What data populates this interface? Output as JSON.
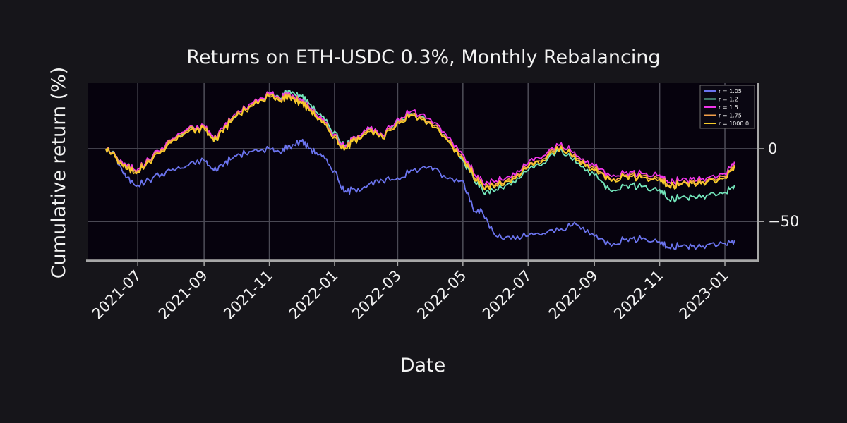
{
  "chart_data": {
    "type": "line",
    "title": "Returns on ETH-USDC 0.3%, Monthly Rebalancing",
    "xlabel": "Date",
    "ylabel": "Cumulative return (%)",
    "xlim": [
      "2021-05-15",
      "2023-02-01"
    ],
    "ylim": [
      -77,
      45
    ],
    "yticks": [
      0,
      -50
    ],
    "ytick_labels": [
      "0",
      "−50"
    ],
    "y_axis_side": "right",
    "xticks": [
      "2021-07-01",
      "2021-09-01",
      "2021-11-01",
      "2022-01-01",
      "2022-03-01",
      "2022-05-01",
      "2022-07-01",
      "2022-09-01",
      "2022-11-01",
      "2023-01-01"
    ],
    "xtick_labels": [
      "2021-07",
      "2021-09",
      "2021-11",
      "2022-01",
      "2022-03",
      "2022-05",
      "2022-07",
      "2022-09",
      "2022-11",
      "2023-01"
    ],
    "grid": true,
    "legend_position": "top-right",
    "series": [
      {
        "name": "r = 1.05",
        "color": "#6b74ee",
        "x": [
          "2021-06-01",
          "2021-06-10",
          "2021-06-20",
          "2021-07-01",
          "2021-07-15",
          "2021-08-01",
          "2021-08-15",
          "2021-09-01",
          "2021-09-10",
          "2021-09-20",
          "2021-10-01",
          "2021-10-15",
          "2021-11-01",
          "2021-11-10",
          "2021-11-20",
          "2021-12-01",
          "2021-12-10",
          "2021-12-20",
          "2022-01-01",
          "2022-01-10",
          "2022-01-20",
          "2022-02-01",
          "2022-02-15",
          "2022-03-01",
          "2022-03-15",
          "2022-04-01",
          "2022-04-15",
          "2022-05-01",
          "2022-05-10",
          "2022-05-20",
          "2022-06-01",
          "2022-06-15",
          "2022-07-01",
          "2022-07-15",
          "2022-08-01",
          "2022-08-15",
          "2022-09-01",
          "2022-09-15",
          "2022-10-01",
          "2022-10-15",
          "2022-11-01",
          "2022-11-10",
          "2022-11-20",
          "2022-12-01",
          "2022-12-15",
          "2023-01-01",
          "2023-01-10"
        ],
        "y": [
          0,
          -5,
          -20,
          -25,
          -20,
          -15,
          -12,
          -8,
          -15,
          -10,
          -5,
          -2,
          0,
          -2,
          2,
          5,
          0,
          -5,
          -15,
          -30,
          -28,
          -25,
          -22,
          -20,
          -15,
          -12,
          -20,
          -22,
          -40,
          -45,
          -60,
          -62,
          -60,
          -58,
          -55,
          -52,
          -60,
          -65,
          -62,
          -62,
          -64,
          -68,
          -67,
          -67,
          -66,
          -65,
          -63
        ]
      },
      {
        "name": "r = 1.2",
        "color": "#73e6bb",
        "x": [
          "2021-06-01",
          "2021-06-10",
          "2021-06-20",
          "2021-07-01",
          "2021-07-15",
          "2021-08-01",
          "2021-08-15",
          "2021-09-01",
          "2021-09-10",
          "2021-09-20",
          "2021-10-01",
          "2021-10-15",
          "2021-11-01",
          "2021-11-10",
          "2021-11-20",
          "2021-12-01",
          "2021-12-10",
          "2021-12-20",
          "2022-01-01",
          "2022-01-10",
          "2022-01-20",
          "2022-02-01",
          "2022-02-15",
          "2022-03-01",
          "2022-03-15",
          "2022-04-01",
          "2022-04-15",
          "2022-05-01",
          "2022-05-10",
          "2022-05-20",
          "2022-06-01",
          "2022-06-15",
          "2022-07-01",
          "2022-07-15",
          "2022-08-01",
          "2022-08-15",
          "2022-09-01",
          "2022-09-15",
          "2022-10-01",
          "2022-10-15",
          "2022-11-01",
          "2022-11-10",
          "2022-11-20",
          "2022-12-01",
          "2022-12-15",
          "2023-01-01",
          "2023-01-10"
        ],
        "y": [
          0,
          -5,
          -12,
          -15,
          -5,
          5,
          12,
          15,
          5,
          15,
          22,
          30,
          38,
          35,
          40,
          36,
          30,
          22,
          12,
          2,
          8,
          14,
          8,
          20,
          24,
          18,
          8,
          -8,
          -18,
          -30,
          -28,
          -25,
          -15,
          -10,
          0,
          -10,
          -18,
          -28,
          -25,
          -26,
          -28,
          -35,
          -34,
          -33,
          -32,
          -30,
          -25
        ]
      },
      {
        "name": "r = 1.5",
        "color": "#f035e9",
        "x": [
          "2021-06-01",
          "2021-06-10",
          "2021-06-20",
          "2021-07-01",
          "2021-07-15",
          "2021-08-01",
          "2021-08-15",
          "2021-09-01",
          "2021-09-10",
          "2021-09-20",
          "2021-10-01",
          "2021-10-15",
          "2021-11-01",
          "2021-11-10",
          "2021-11-20",
          "2021-12-01",
          "2021-12-10",
          "2021-12-20",
          "2022-01-01",
          "2022-01-10",
          "2022-01-20",
          "2022-02-01",
          "2022-02-15",
          "2022-03-01",
          "2022-03-15",
          "2022-04-01",
          "2022-04-15",
          "2022-05-01",
          "2022-05-10",
          "2022-05-20",
          "2022-06-01",
          "2022-06-15",
          "2022-07-01",
          "2022-07-15",
          "2022-08-01",
          "2022-08-15",
          "2022-09-01",
          "2022-09-15",
          "2022-10-01",
          "2022-10-15",
          "2022-11-01",
          "2022-11-10",
          "2022-11-20",
          "2022-12-01",
          "2022-12-15",
          "2023-01-01",
          "2023-01-10"
        ],
        "y": [
          0,
          -5,
          -12,
          -14,
          -5,
          6,
          13,
          16,
          7,
          16,
          24,
          31,
          38,
          35,
          38,
          33,
          28,
          20,
          10,
          1,
          8,
          15,
          9,
          21,
          26,
          20,
          10,
          -4,
          -14,
          -24,
          -22,
          -20,
          -10,
          -5,
          4,
          -5,
          -12,
          -18,
          -16,
          -17,
          -18,
          -23,
          -22,
          -21,
          -20,
          -17,
          -9
        ]
      },
      {
        "name": "r = 1.75",
        "color": "#f3a04a",
        "x": [
          "2021-06-01",
          "2021-06-10",
          "2021-06-20",
          "2021-07-01",
          "2021-07-15",
          "2021-08-01",
          "2021-08-15",
          "2021-09-01",
          "2021-09-10",
          "2021-09-20",
          "2021-10-01",
          "2021-10-15",
          "2021-11-01",
          "2021-11-10",
          "2021-11-20",
          "2021-12-01",
          "2021-12-10",
          "2021-12-20",
          "2022-01-01",
          "2022-01-10",
          "2022-01-20",
          "2022-02-01",
          "2022-02-15",
          "2022-03-01",
          "2022-03-15",
          "2022-04-01",
          "2022-04-15",
          "2022-05-01",
          "2022-05-10",
          "2022-05-20",
          "2022-06-01",
          "2022-06-15",
          "2022-07-01",
          "2022-07-15",
          "2022-08-01",
          "2022-08-15",
          "2022-09-01",
          "2022-09-15",
          "2022-10-01",
          "2022-10-15",
          "2022-11-01",
          "2022-11-10",
          "2022-11-20",
          "2022-12-01",
          "2022-12-15",
          "2023-01-01",
          "2023-01-10"
        ],
        "y": [
          0,
          -5,
          -13,
          -15,
          -6,
          5,
          12,
          15,
          6,
          15,
          23,
          30,
          37,
          34,
          37,
          32,
          27,
          19,
          9,
          0,
          7,
          13,
          8,
          19,
          24,
          18,
          8,
          -6,
          -16,
          -26,
          -24,
          -22,
          -12,
          -7,
          2,
          -7,
          -14,
          -20,
          -18,
          -19,
          -20,
          -25,
          -24,
          -23,
          -22,
          -19,
          -11
        ]
      },
      {
        "name": "r = 1000.0",
        "color": "#f7cc2a",
        "x": [
          "2021-06-01",
          "2021-06-10",
          "2021-06-20",
          "2021-07-01",
          "2021-07-15",
          "2021-08-01",
          "2021-08-15",
          "2021-09-01",
          "2021-09-10",
          "2021-09-20",
          "2021-10-01",
          "2021-10-15",
          "2021-11-01",
          "2021-11-10",
          "2021-11-20",
          "2021-12-01",
          "2021-12-10",
          "2021-12-20",
          "2022-01-01",
          "2022-01-10",
          "2022-01-20",
          "2022-02-01",
          "2022-02-15",
          "2022-03-01",
          "2022-03-15",
          "2022-04-01",
          "2022-04-15",
          "2022-05-01",
          "2022-05-10",
          "2022-05-20",
          "2022-06-01",
          "2022-06-15",
          "2022-07-01",
          "2022-07-15",
          "2022-08-01",
          "2022-08-15",
          "2022-09-01",
          "2022-09-15",
          "2022-10-01",
          "2022-10-15",
          "2022-11-01",
          "2022-11-10",
          "2022-11-20",
          "2022-12-01",
          "2022-12-15",
          "2023-01-01",
          "2023-01-10"
        ],
        "y": [
          0,
          -6,
          -14,
          -16,
          -7,
          4,
          11,
          14,
          5,
          14,
          22,
          29,
          36,
          33,
          36,
          31,
          26,
          18,
          8,
          -1,
          6,
          12,
          7,
          18,
          23,
          17,
          7,
          -7,
          -17,
          -27,
          -25,
          -23,
          -13,
          -8,
          1,
          -8,
          -15,
          -21,
          -19,
          -20,
          -21,
          -26,
          -25,
          -24,
          -23,
          -20,
          -12
        ]
      }
    ]
  }
}
